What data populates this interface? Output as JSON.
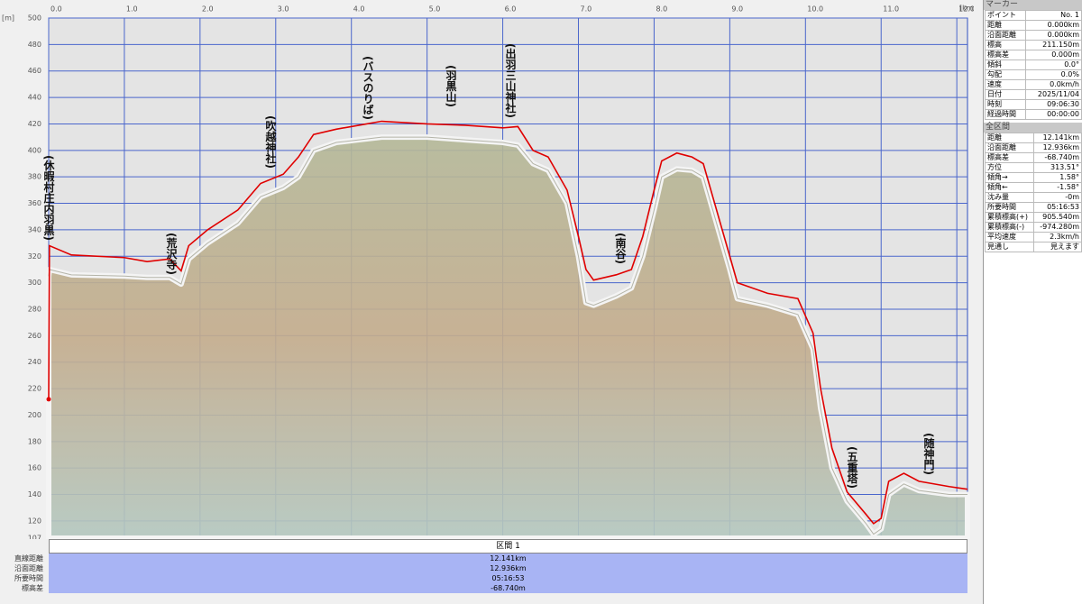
{
  "chart_data": {
    "type": "line",
    "y_unit": "[m]",
    "x_unit": "[km]",
    "xlim": [
      0,
      12.141
    ],
    "ylim": [
      107,
      500
    ],
    "xticks": [
      {
        "value": 0,
        "label": "0.0"
      },
      {
        "value": 1,
        "label": "1.0"
      },
      {
        "value": 2,
        "label": "2.0"
      },
      {
        "value": 3,
        "label": "3.0"
      },
      {
        "value": 4,
        "label": "4.0"
      },
      {
        "value": 5,
        "label": "5.0"
      },
      {
        "value": 6,
        "label": "6.0"
      },
      {
        "value": 7,
        "label": "7.0"
      },
      {
        "value": 8,
        "label": "8.0"
      },
      {
        "value": 9,
        "label": "9.0"
      },
      {
        "value": 10,
        "label": "10.0"
      },
      {
        "value": 11,
        "label": "11.0"
      },
      {
        "value": 12,
        "label": "12.0"
      }
    ],
    "yticks": [
      107,
      120,
      140,
      160,
      180,
      200,
      220,
      240,
      260,
      280,
      300,
      320,
      340,
      360,
      380,
      400,
      420,
      440,
      460,
      480,
      500
    ],
    "grid": true,
    "x": [
      0,
      0.01,
      0.3,
      1.0,
      1.3,
      1.6,
      1.75,
      1.85,
      2.1,
      2.5,
      2.8,
      3.1,
      3.3,
      3.5,
      3.8,
      4.1,
      4.4,
      5.0,
      5.5,
      6.0,
      6.2,
      6.4,
      6.6,
      6.85,
      7.0,
      7.1,
      7.2,
      7.5,
      7.7,
      7.85,
      8.0,
      8.1,
      8.3,
      8.5,
      8.65,
      8.8,
      9.0,
      9.1,
      9.5,
      9.9,
      10.1,
      10.2,
      10.35,
      10.55,
      10.8,
      10.9,
      11.0,
      11.1,
      11.3,
      11.5,
      11.9,
      12.141
    ],
    "series": [
      {
        "color": "#e00000",
        "values": [
          212,
          328,
          321,
          319,
          316,
          318,
          309,
          328,
          340,
          355,
          375,
          382,
          395,
          412,
          416,
          419,
          422,
          420,
          419,
          417,
          418,
          400,
          395,
          370,
          335,
          310,
          302,
          306,
          310,
          335,
          370,
          392,
          398,
          395,
          390,
          360,
          320,
          300,
          292,
          288,
          262,
          220,
          175,
          142,
          125,
          118,
          122,
          150,
          156,
          150,
          146,
          144
        ]
      },
      {
        "color": "#b4b4a8",
        "values": [
          305,
          310,
          306,
          305,
          304,
          304,
          299,
          318,
          330,
          345,
          365,
          372,
          380,
          400,
          406,
          408,
          410,
          410,
          408,
          406,
          404,
          390,
          385,
          360,
          320,
          285,
          283,
          290,
          296,
          320,
          355,
          380,
          386,
          385,
          380,
          350,
          310,
          288,
          283,
          276,
          250,
          205,
          160,
          135,
          118,
          110,
          114,
          140,
          148,
          143,
          140,
          140
        ]
      }
    ],
    "annotations": [
      "(休暇村庄内羽黒)",
      "(荒沢寺)",
      "(吹越神社)",
      "(バスのりば)",
      "(羽黒山)",
      "(出羽三山神社)",
      "(南谷)",
      "(五重塔)",
      "(随神門)"
    ]
  },
  "segment_panel": {
    "title": "区間 1",
    "rows": [
      [
        "直線距離",
        "12.141km"
      ],
      [
        "沿面距離",
        "12.936km"
      ],
      [
        "所要時間",
        "05:16:53"
      ],
      [
        "標高差",
        "-68.740m"
      ]
    ]
  },
  "marker_panel": {
    "title": "マーカー",
    "rows": [
      [
        "ポイント",
        "No. 1"
      ],
      [
        "距離",
        "0.000km"
      ],
      [
        "沿面距離",
        "0.000km"
      ],
      [
        "標高",
        "211.150m"
      ],
      [
        "標高差",
        "0.000m"
      ],
      [
        "傾斜",
        "0.0°"
      ],
      [
        "勾配",
        "0.0%"
      ],
      [
        "速度",
        "0.0km/h"
      ],
      [
        "日付",
        "2025/11/04"
      ],
      [
        "時刻",
        "09:06:30"
      ],
      [
        "経過時間",
        "00:00:00"
      ]
    ]
  },
  "total_panel": {
    "title": "全区間",
    "rows": [
      [
        "距離",
        "12.141km"
      ],
      [
        "沿面距離",
        "12.936km"
      ],
      [
        "標高差",
        "-68.740m"
      ],
      [
        "方位",
        "313.51°"
      ],
      [
        "傾角→",
        "1.58°"
      ],
      [
        "傾角←",
        "-1.58°"
      ],
      [
        "沈み量",
        "-0m"
      ],
      [
        "所要時間",
        "05:16:53"
      ],
      [
        "累積標高(+)",
        "905.540m"
      ],
      [
        "累積標高(-)",
        "-974.280m"
      ],
      [
        "平均速度",
        "2.3km/h"
      ],
      [
        "見通し",
        "見えます"
      ]
    ]
  }
}
